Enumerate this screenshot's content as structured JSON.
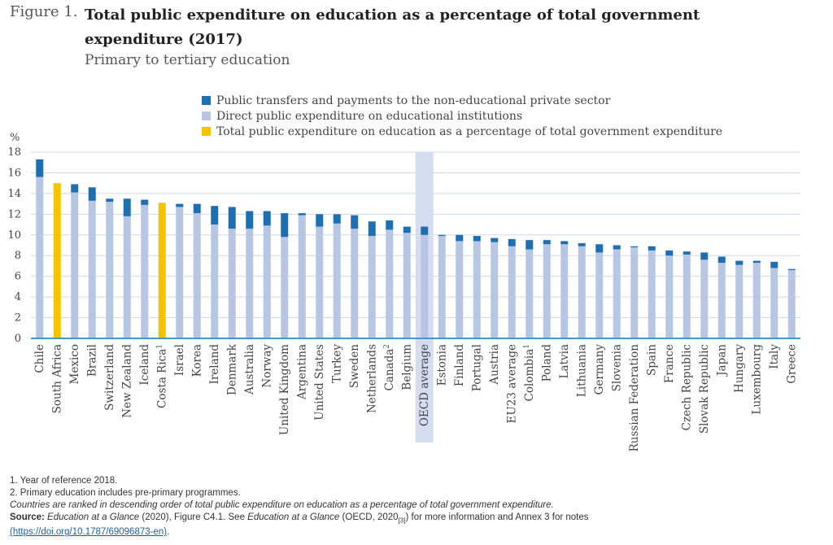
{
  "figure": {
    "label": "Figure 1.",
    "title": "Total public expenditure on education as a percentage of total government expenditure (2017)",
    "subtitle": "Primary to tertiary education"
  },
  "colors": {
    "transfers": "#1d6fb2",
    "direct": "#b6c6e3",
    "total": "#f6c300",
    "highlight": "#d5dcef",
    "axis": "#3d9ad6",
    "grid": "#cfd8e8"
  },
  "chart_data": {
    "type": "bar",
    "stacked": true,
    "ylabel": "%",
    "ylim": [
      0,
      18
    ],
    "yticks": [
      0,
      2,
      4,
      6,
      8,
      10,
      12,
      14,
      16,
      18
    ],
    "grid": true,
    "legend_position": "top",
    "legend": [
      {
        "key": "transfers",
        "label": "Public transfers and payments to the non-educational private sector"
      },
      {
        "key": "direct",
        "label": "Direct public expenditure on educational institutions"
      },
      {
        "key": "total",
        "label": "Total public expenditure on education as a percentage of total government expenditure"
      }
    ],
    "highlighted_category": "OECD average",
    "categories": [
      {
        "label": "Chile",
        "sup": "",
        "direct": 15.6,
        "transfers": 1.7,
        "total": null
      },
      {
        "label": "South Africa",
        "sup": "",
        "direct": null,
        "transfers": null,
        "total": 15.0
      },
      {
        "label": "Mexico",
        "sup": "",
        "direct": 14.1,
        "transfers": 0.8,
        "total": null
      },
      {
        "label": "Brazil",
        "sup": "",
        "direct": 13.3,
        "transfers": 1.3,
        "total": null
      },
      {
        "label": "Switzerland",
        "sup": "",
        "direct": 13.2,
        "transfers": 0.3,
        "total": null
      },
      {
        "label": "New Zealand",
        "sup": "",
        "direct": 11.8,
        "transfers": 1.7,
        "total": null
      },
      {
        "label": "Iceland",
        "sup": "",
        "direct": 12.9,
        "transfers": 0.5,
        "total": null
      },
      {
        "label": "Costa Rica",
        "sup": "1",
        "direct": null,
        "transfers": null,
        "total": 13.1
      },
      {
        "label": "Israel",
        "sup": "",
        "direct": 12.7,
        "transfers": 0.3,
        "total": null
      },
      {
        "label": "Korea",
        "sup": "",
        "direct": 12.1,
        "transfers": 0.9,
        "total": null
      },
      {
        "label": "Ireland",
        "sup": "",
        "direct": 11.0,
        "transfers": 1.8,
        "total": null
      },
      {
        "label": "Denmark",
        "sup": "",
        "direct": 10.6,
        "transfers": 2.1,
        "total": null
      },
      {
        "label": "Australia",
        "sup": "",
        "direct": 10.6,
        "transfers": 1.7,
        "total": null
      },
      {
        "label": "Norway",
        "sup": "",
        "direct": 10.9,
        "transfers": 1.4,
        "total": null
      },
      {
        "label": "United Kingdom",
        "sup": "",
        "direct": 9.8,
        "transfers": 2.3,
        "total": null
      },
      {
        "label": "Argentina",
        "sup": "",
        "direct": 11.9,
        "transfers": 0.2,
        "total": null
      },
      {
        "label": "United States",
        "sup": "",
        "direct": 10.8,
        "transfers": 1.2,
        "total": null
      },
      {
        "label": "Turkey",
        "sup": "",
        "direct": 11.1,
        "transfers": 0.9,
        "total": null
      },
      {
        "label": "Sweden",
        "sup": "",
        "direct": 10.6,
        "transfers": 1.3,
        "total": null
      },
      {
        "label": "Netherlands",
        "sup": "",
        "direct": 9.9,
        "transfers": 1.4,
        "total": null
      },
      {
        "label": "Canada",
        "sup": "2",
        "direct": 10.5,
        "transfers": 0.9,
        "total": null
      },
      {
        "label": "Belgium",
        "sup": "",
        "direct": 10.2,
        "transfers": 0.6,
        "total": null
      },
      {
        "label": "OECD average",
        "sup": "",
        "direct": 10.0,
        "transfers": 0.8,
        "total": null
      },
      {
        "label": "Estonia",
        "sup": "",
        "direct": 9.9,
        "transfers": 0.1,
        "total": null
      },
      {
        "label": "Finland",
        "sup": "",
        "direct": 9.4,
        "transfers": 0.6,
        "total": null
      },
      {
        "label": "Portugal",
        "sup": "",
        "direct": 9.4,
        "transfers": 0.5,
        "total": null
      },
      {
        "label": "Austria",
        "sup": "",
        "direct": 9.3,
        "transfers": 0.4,
        "total": null
      },
      {
        "label": "EU23 average",
        "sup": "",
        "direct": 8.9,
        "transfers": 0.7,
        "total": null
      },
      {
        "label": "Colombia",
        "sup": "1",
        "direct": 8.6,
        "transfers": 0.9,
        "total": null
      },
      {
        "label": "Poland",
        "sup": "",
        "direct": 9.1,
        "transfers": 0.4,
        "total": null
      },
      {
        "label": "Latvia",
        "sup": "",
        "direct": 9.1,
        "transfers": 0.3,
        "total": null
      },
      {
        "label": "Lithuania",
        "sup": "",
        "direct": 8.9,
        "transfers": 0.3,
        "total": null
      },
      {
        "label": "Germany",
        "sup": "",
        "direct": 8.3,
        "transfers": 0.8,
        "total": null
      },
      {
        "label": "Slovenia",
        "sup": "",
        "direct": 8.6,
        "transfers": 0.4,
        "total": null
      },
      {
        "label": "Russian Federation",
        "sup": "",
        "direct": 8.8,
        "transfers": 0.1,
        "total": null
      },
      {
        "label": "Spain",
        "sup": "",
        "direct": 8.5,
        "transfers": 0.4,
        "total": null
      },
      {
        "label": "France",
        "sup": "",
        "direct": 8.0,
        "transfers": 0.5,
        "total": null
      },
      {
        "label": "Czech Republic",
        "sup": "",
        "direct": 8.1,
        "transfers": 0.3,
        "total": null
      },
      {
        "label": "Slovak Republic",
        "sup": "",
        "direct": 7.6,
        "transfers": 0.7,
        "total": null
      },
      {
        "label": "Japan",
        "sup": "",
        "direct": 7.3,
        "transfers": 0.6,
        "total": null
      },
      {
        "label": "Hungary",
        "sup": "",
        "direct": 7.1,
        "transfers": 0.4,
        "total": null
      },
      {
        "label": "Luxembourg",
        "sup": "",
        "direct": 7.3,
        "transfers": 0.2,
        "total": null
      },
      {
        "label": "Italy",
        "sup": "",
        "direct": 6.8,
        "transfers": 0.6,
        "total": null
      },
      {
        "label": "Greece",
        "sup": "",
        "direct": 6.6,
        "transfers": 0.1,
        "total": null
      }
    ]
  },
  "notes": {
    "note1": "1. Year of reference 2018.",
    "note2": "2. Primary education includes pre-primary programmes.",
    "ranking": "Countries are ranked in descending order of total public expenditure on education as a percentage of total government expenditure.",
    "source_label": "Source:",
    "source_pub1": "Education at a Glance",
    "source_mid1": " (2020), Figure C4.1. See ",
    "source_pub2": "Education at a Glance",
    "source_mid2": " (OECD, 2020",
    "source_ref": "[3]",
    "source_end": ") for more information and Annex 3 for notes",
    "link": "(https://doi.org/10.1787/69096873-en)",
    "link_tail": "."
  }
}
